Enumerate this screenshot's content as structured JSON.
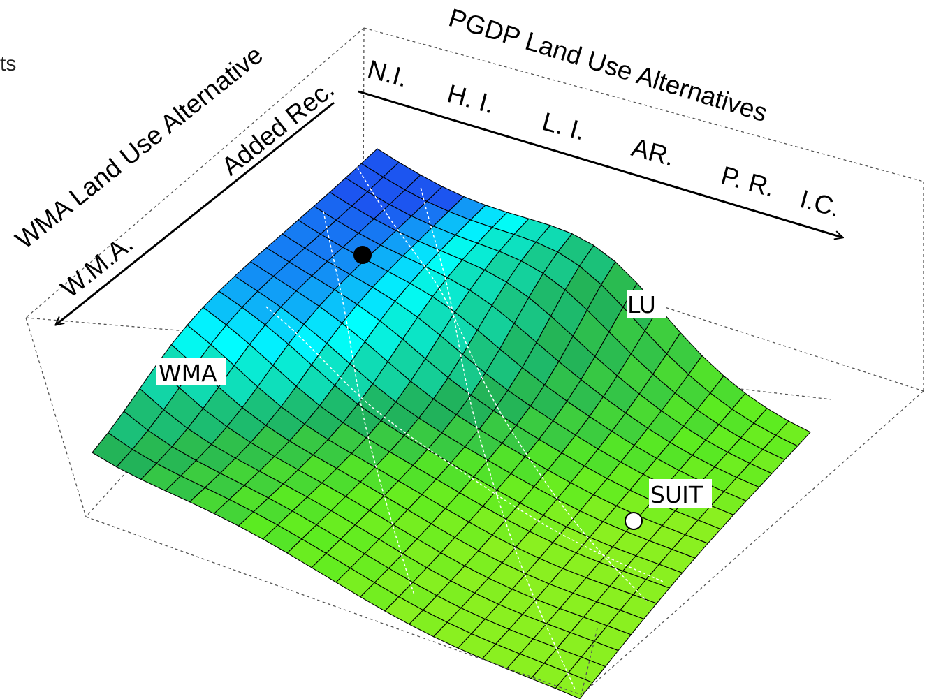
{
  "clipped_text": "ts",
  "chart_data": {
    "type": "surface3d",
    "x_axis": {
      "label": "PGDP Land Use Alternatives",
      "ticks": [
        "N.I.",
        "H. I.",
        "L. I.",
        "AR.",
        "P. R.",
        "I.C."
      ]
    },
    "y_axis": {
      "label": "WMA Land Use Alternative",
      "ticks": [
        "W.M.A.",
        "Added Rec."
      ]
    },
    "grid": {
      "rows": 18,
      "cols": 20
    },
    "colormap": [
      "#1c55f0",
      "#00ffff",
      "#21b25a",
      "#5cec20",
      "#8af020"
    ],
    "markers": [
      {
        "label": "",
        "color": "#000000"
      },
      {
        "label": "SUIT",
        "color": "#ffffff"
      }
    ],
    "contour_labels": [
      "WMA",
      "LU"
    ]
  }
}
